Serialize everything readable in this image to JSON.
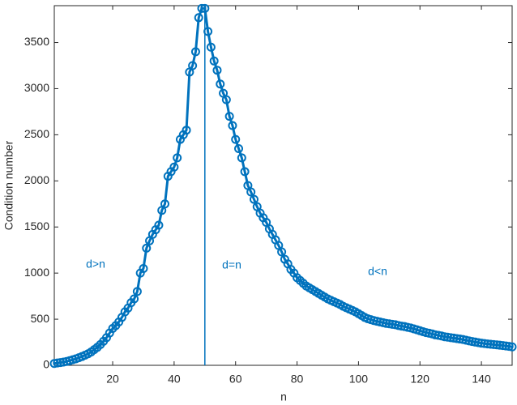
{
  "chart_data": {
    "type": "line",
    "x_label": "n",
    "y_label": "Condition number",
    "color": "#0072bd",
    "x": [
      1,
      2,
      3,
      4,
      5,
      6,
      7,
      8,
      9,
      10,
      11,
      12,
      13,
      14,
      15,
      16,
      17,
      18,
      19,
      20,
      21,
      22,
      23,
      24,
      25,
      26,
      27,
      28,
      29,
      30,
      31,
      32,
      33,
      34,
      35,
      36,
      37,
      38,
      39,
      40,
      41,
      42,
      43,
      44,
      45,
      46,
      47,
      48,
      49,
      50,
      51,
      52,
      53,
      54,
      55,
      56,
      57,
      58,
      59,
      60,
      61,
      62,
      63,
      64,
      65,
      66,
      67,
      68,
      69,
      70,
      71,
      72,
      73,
      74,
      75,
      76,
      77,
      78,
      79,
      80,
      81,
      82,
      83,
      84,
      85,
      86,
      87,
      88,
      89,
      90,
      91,
      92,
      93,
      94,
      95,
      96,
      97,
      98,
      99,
      100,
      101,
      102,
      103,
      104,
      105,
      106,
      107,
      108,
      109,
      110,
      111,
      112,
      113,
      114,
      115,
      116,
      117,
      118,
      119,
      120,
      121,
      122,
      123,
      124,
      125,
      126,
      127,
      128,
      129,
      130,
      131,
      132,
      133,
      134,
      135,
      136,
      137,
      138,
      139,
      140,
      141,
      142,
      143,
      144,
      145,
      146,
      147,
      148,
      149,
      150
    ],
    "values": [
      20,
      25,
      30,
      35,
      42,
      50,
      60,
      70,
      82,
      95,
      110,
      125,
      145,
      170,
      195,
      225,
      260,
      300,
      350,
      400,
      430,
      470,
      520,
      580,
      620,
      680,
      720,
      800,
      1000,
      1050,
      1270,
      1350,
      1420,
      1470,
      1520,
      1680,
      1750,
      2050,
      2100,
      2150,
      2250,
      2450,
      2500,
      2550,
      3180,
      3250,
      3400,
      3770,
      3870,
      3870,
      3620,
      3450,
      3300,
      3200,
      3050,
      2950,
      2880,
      2700,
      2600,
      2450,
      2350,
      2250,
      2100,
      1950,
      1880,
      1800,
      1720,
      1650,
      1600,
      1550,
      1480,
      1420,
      1360,
      1300,
      1230,
      1150,
      1100,
      1040,
      1000,
      950,
      920,
      890,
      860,
      840,
      820,
      800,
      780,
      760,
      740,
      720,
      705,
      690,
      675,
      660,
      640,
      625,
      610,
      595,
      580,
      560,
      540,
      520,
      505,
      495,
      485,
      478,
      470,
      462,
      455,
      450,
      445,
      440,
      432,
      425,
      420,
      412,
      405,
      395,
      385,
      375,
      365,
      355,
      348,
      340,
      330,
      325,
      318,
      310,
      305,
      300,
      295,
      290,
      285,
      280,
      272,
      265,
      258,
      252,
      246,
      240,
      236,
      232,
      228,
      225,
      222,
      218,
      214,
      210,
      205,
      200
    ],
    "vline": 50,
    "annotations": [
      "d>n",
      "d=n",
      "d<n"
    ],
    "xlim": [
      1,
      150
    ],
    "ylim": [
      0,
      3900
    ],
    "xticks": [
      20,
      40,
      60,
      80,
      100,
      120,
      140
    ],
    "yticks": [
      0,
      500,
      1000,
      1500,
      2000,
      2500,
      3000,
      3500
    ]
  }
}
